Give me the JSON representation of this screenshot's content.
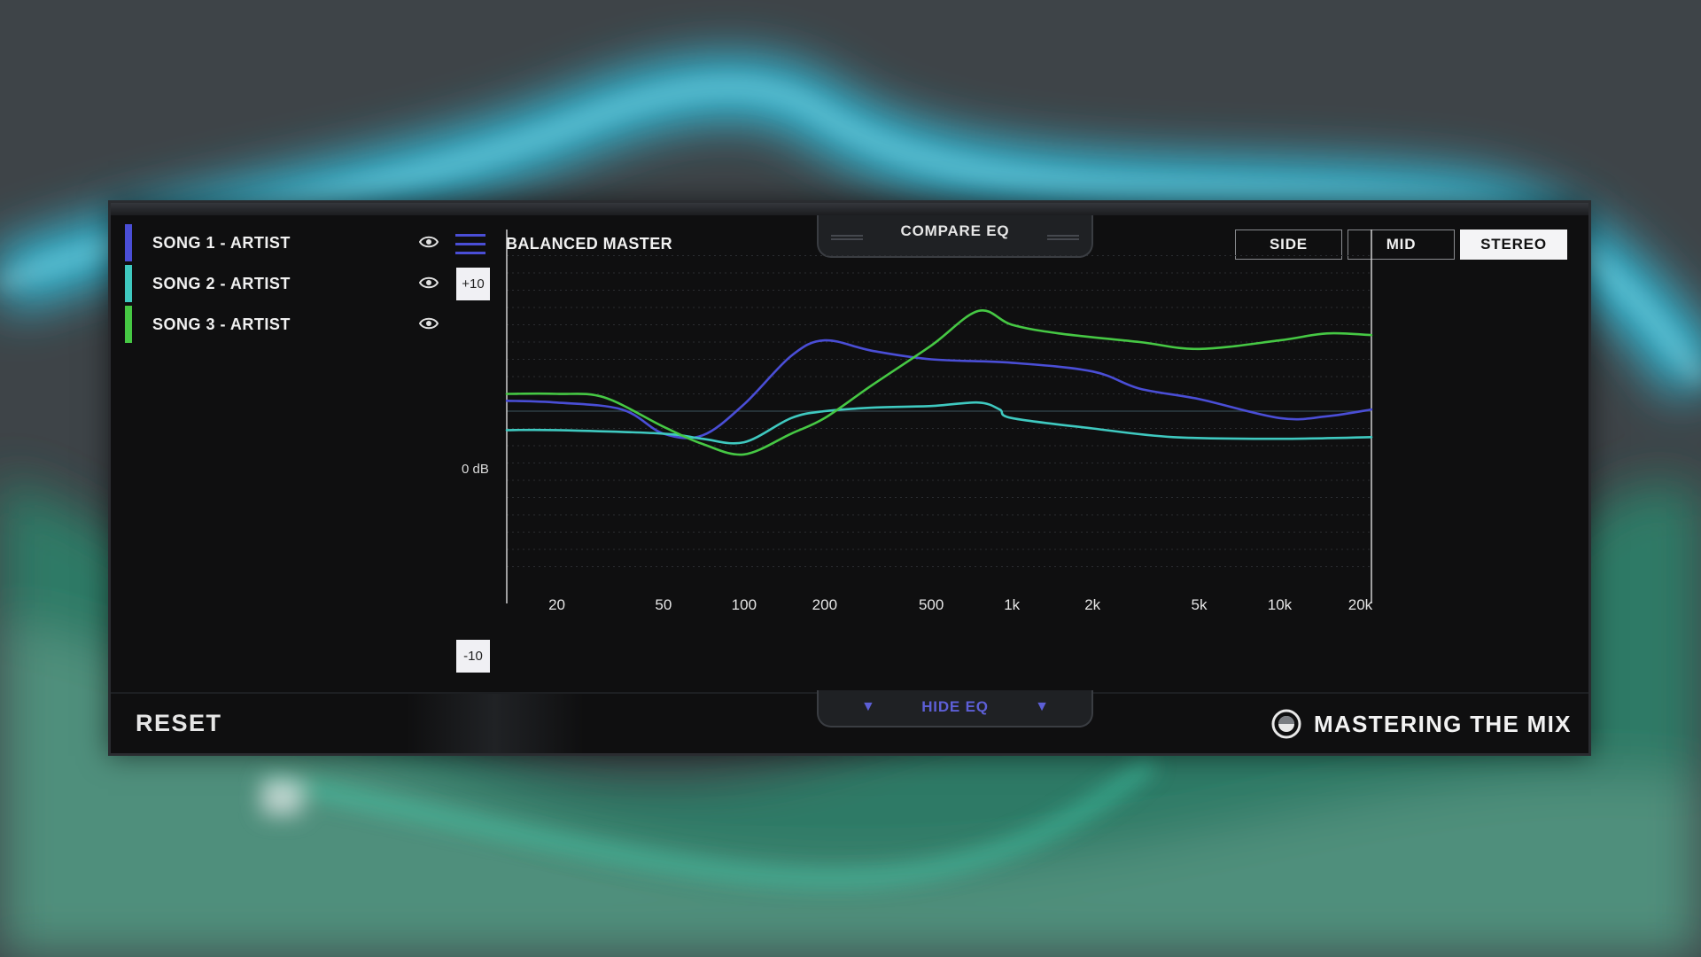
{
  "songs": [
    {
      "label": "SONG 1 - ARTIST",
      "color": "#4a4ed6",
      "visible": true
    },
    {
      "label": "SONG 2 - ARTIST",
      "color": "#3fc9c0",
      "visible": true
    },
    {
      "label": "SONG 3 - ARTIST",
      "color": "#46c844",
      "visible": true
    }
  ],
  "preset": {
    "name": "BALANCED MASTER"
  },
  "compare": {
    "label": "COMPARE EQ"
  },
  "modes": {
    "side": "SIDE",
    "mid": "MID",
    "stereo": "STEREO",
    "active": "STEREO"
  },
  "db_labels": {
    "top": "+10",
    "zero": "0 dB",
    "bottom": "-10"
  },
  "footer": {
    "reset": "RESET",
    "hide_eq": "HIDE EQ",
    "brand": "MASTERING THE MIX"
  },
  "chart_data": {
    "type": "line",
    "xscale": "log",
    "x_tick_labels": [
      "20",
      "50",
      "100",
      "200",
      "500",
      "1k",
      "2k",
      "5k",
      "10k",
      "20k"
    ],
    "x_tick_values": [
      20,
      50,
      100,
      200,
      500,
      1000,
      2000,
      5000,
      10000,
      20000
    ],
    "xlim": [
      13,
      22000
    ],
    "ylim": [
      -10,
      10
    ],
    "grid": true,
    "series": [
      {
        "color": "#4a4ed6",
        "points": [
          [
            13,
            0.6
          ],
          [
            20,
            0.5
          ],
          [
            35,
            0.1
          ],
          [
            50,
            -1.3
          ],
          [
            70,
            -1.4
          ],
          [
            100,
            0.4
          ],
          [
            150,
            3.2
          ],
          [
            200,
            4.1
          ],
          [
            300,
            3.5
          ],
          [
            500,
            3.0
          ],
          [
            1000,
            2.8
          ],
          [
            2000,
            2.3
          ],
          [
            3000,
            1.3
          ],
          [
            5000,
            0.7
          ],
          [
            10000,
            -0.4
          ],
          [
            15000,
            -0.3
          ],
          [
            22000,
            0.1
          ]
        ]
      },
      {
        "color": "#3fc9c0",
        "points": [
          [
            13,
            -1.1
          ],
          [
            20,
            -1.1
          ],
          [
            50,
            -1.3
          ],
          [
            70,
            -1.6
          ],
          [
            100,
            -1.8
          ],
          [
            150,
            -0.4
          ],
          [
            200,
            0.0
          ],
          [
            300,
            0.2
          ],
          [
            500,
            0.3
          ],
          [
            750,
            0.5
          ],
          [
            900,
            0.1
          ],
          [
            1000,
            -0.4
          ],
          [
            2000,
            -1.0
          ],
          [
            4000,
            -1.5
          ],
          [
            10000,
            -1.6
          ],
          [
            22000,
            -1.5
          ]
        ]
      },
      {
        "color": "#46c844",
        "points": [
          [
            13,
            1.0
          ],
          [
            20,
            1.0
          ],
          [
            30,
            0.8
          ],
          [
            50,
            -0.9
          ],
          [
            70,
            -1.9
          ],
          [
            100,
            -2.5
          ],
          [
            150,
            -1.3
          ],
          [
            200,
            -0.4
          ],
          [
            300,
            1.5
          ],
          [
            500,
            3.8
          ],
          [
            750,
            5.8
          ],
          [
            1000,
            5.0
          ],
          [
            1500,
            4.5
          ],
          [
            3000,
            4.0
          ],
          [
            5000,
            3.6
          ],
          [
            10000,
            4.1
          ],
          [
            15000,
            4.5
          ],
          [
            22000,
            4.4
          ]
        ]
      }
    ]
  }
}
